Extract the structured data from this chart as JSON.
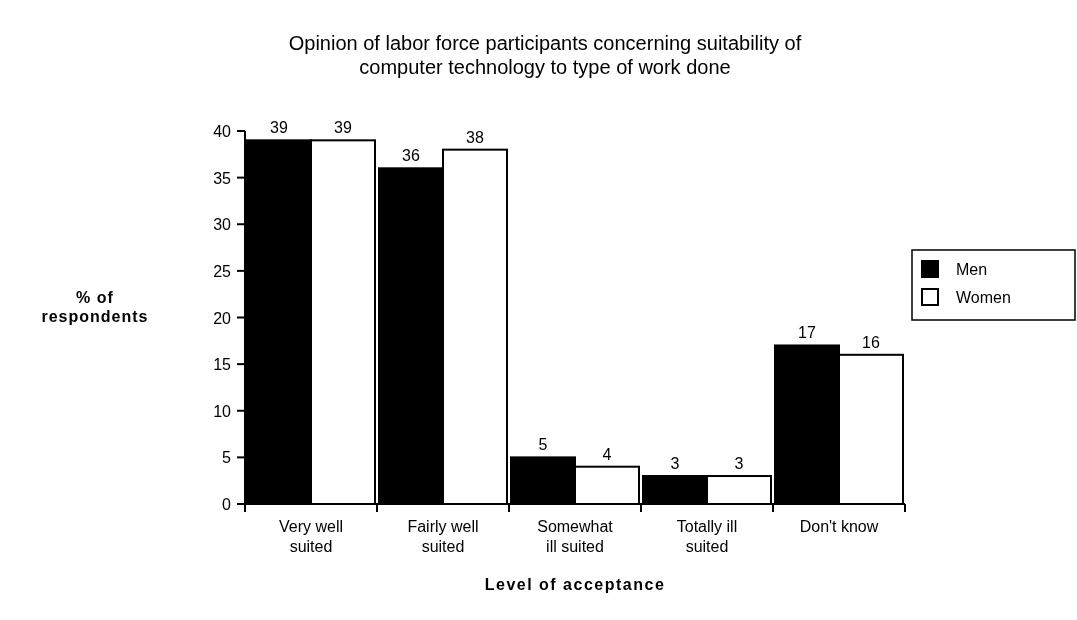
{
  "chart_data": {
    "type": "bar",
    "title": "Opinion of labor force participants concerning suitability of computer technology to type of work done",
    "xlabel": "Level of acceptance",
    "ylabel": "% of respondents",
    "categories": [
      "Very well suited",
      "Fairly well suited",
      "Somewhat ill suited",
      "Totally ill suited",
      "Don't know"
    ],
    "series": [
      {
        "name": "Men",
        "color": "#000000",
        "values": [
          39,
          36,
          5,
          3,
          17
        ]
      },
      {
        "name": "Women",
        "color": "#ffffff",
        "values": [
          39,
          38,
          4,
          3,
          16
        ]
      }
    ],
    "ylim": [
      0,
      40
    ],
    "yticks": [
      0,
      5,
      10,
      15,
      20,
      25,
      30,
      35,
      40
    ],
    "grid": false,
    "legend": "right",
    "data_labels": true
  }
}
